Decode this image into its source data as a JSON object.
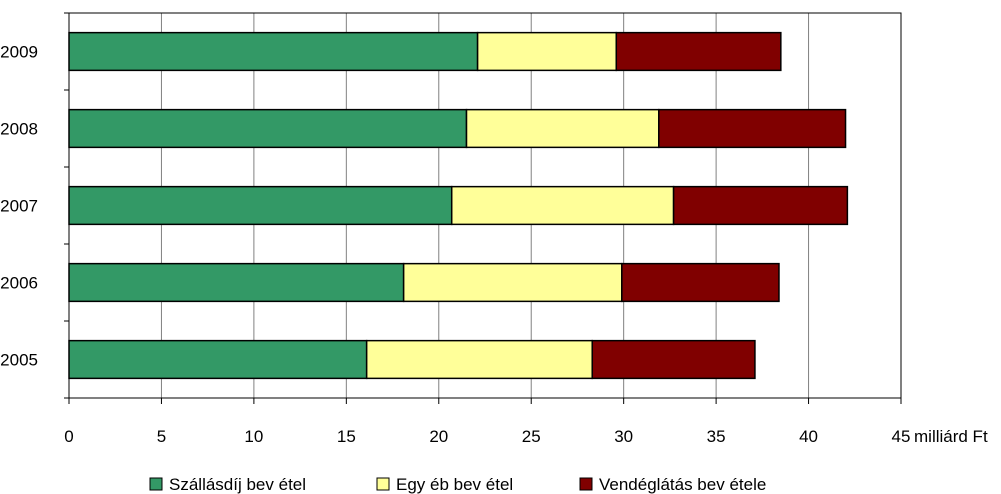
{
  "chart_data": {
    "type": "bar",
    "orientation": "horizontal",
    "stacked": true,
    "categories": [
      "2009",
      "2008",
      "2007",
      "2006",
      "2005"
    ],
    "series": [
      {
        "name": "Szállásdíj bev étel",
        "color": "#339966",
        "values": [
          22.1,
          21.5,
          20.7,
          18.1,
          16.1
        ]
      },
      {
        "name": "Egy éb bev étel",
        "color": "#ffff99",
        "values": [
          7.5,
          10.4,
          12.0,
          11.8,
          12.2
        ]
      },
      {
        "name": "Vendéglátás bev étele",
        "color": "#800000",
        "values": [
          8.9,
          10.1,
          9.4,
          8.5,
          8.8
        ]
      }
    ],
    "xlim": [
      0,
      45
    ],
    "xticks": [
      "0",
      "5",
      "10",
      "15",
      "20",
      "25",
      "30",
      "35",
      "40",
      "45"
    ],
    "xunit": "milliárd Ft",
    "grid": true,
    "legend_position": "bottom"
  }
}
